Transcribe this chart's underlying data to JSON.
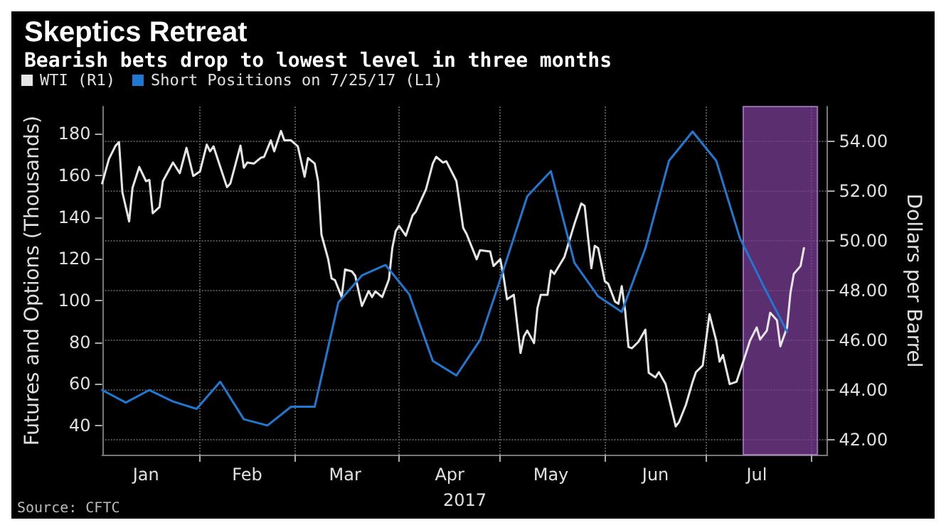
{
  "chart_data": {
    "type": "line",
    "title": "Skeptics Retreat",
    "subtitle": "Bearish bets drop to lowest level in three months",
    "xlabel": "2017",
    "ylabel": "Futures and Options (Thousands)",
    "y2label": "Dollars per Barrel",
    "annotations": [
      "Source: CFTC"
    ],
    "legend": "top left",
    "grid": true,
    "marker": "none",
    "line_style": "solid",
    "xlim": [
      "2017-01-03",
      "2017-08-06"
    ],
    "xticks": [
      {
        "value": "2017-02-01",
        "label": null
      },
      {
        "value": "2017-03-01",
        "label": null
      },
      {
        "value": "2017-04-01",
        "label": null
      },
      {
        "value": "2017-05-01",
        "label": null
      },
      {
        "value": "2017-06-01",
        "label": null
      },
      {
        "value": "2017-07-01",
        "label": null
      },
      {
        "value": "2017-08-01",
        "label": null
      },
      {
        "value": "2017-01-16",
        "label": "Jan"
      },
      {
        "value": "2017-02-15",
        "label": "Feb"
      },
      {
        "value": "2017-03-16",
        "label": "Mar"
      },
      {
        "value": "2017-04-16",
        "label": "Apr"
      },
      {
        "value": "2017-05-16",
        "label": "May"
      },
      {
        "value": "2017-06-16",
        "label": "Jun"
      },
      {
        "value": "2017-07-16",
        "label": "Jul"
      }
    ],
    "ylim": [
      26,
      193
    ],
    "yticks": [
      40,
      60,
      80,
      100,
      120,
      140,
      160,
      180
    ],
    "y2lim": [
      41.4,
      55.4
    ],
    "y2ticks": [
      {
        "value": 42,
        "label": "42.00"
      },
      {
        "value": 44,
        "label": "44.00"
      },
      {
        "value": 46,
        "label": "46.00"
      },
      {
        "value": 48,
        "label": "48.00"
      },
      {
        "value": 50,
        "label": "50.00"
      },
      {
        "value": 52,
        "label": "52.00"
      },
      {
        "value": 54,
        "label": "54.00"
      }
    ],
    "bands": [
      {
        "axis": "x",
        "from": "2017-07-12",
        "to": "2017-08-03",
        "color": "#7a3e96"
      }
    ],
    "series": [
      {
        "name": "WTI (R1)",
        "color": "#e6e6e6",
        "axis": "y2",
        "x": [
          "2017-01-03",
          "2017-01-05",
          "2017-01-07",
          "2017-01-08",
          "2017-01-09",
          "2017-01-11",
          "2017-01-12",
          "2017-01-14",
          "2017-01-16",
          "2017-01-17",
          "2017-01-18",
          "2017-01-20",
          "2017-01-21",
          "2017-01-24",
          "2017-01-26",
          "2017-01-28",
          "2017-01-30",
          "2017-02-01",
          "2017-02-03",
          "2017-02-04",
          "2017-02-05",
          "2017-02-09",
          "2017-02-10",
          "2017-02-13",
          "2017-02-14",
          "2017-02-15",
          "2017-02-17",
          "2017-02-19",
          "2017-02-20",
          "2017-02-22",
          "2017-02-23",
          "2017-02-25",
          "2017-02-26",
          "2017-02-28",
          "2017-03-01",
          "2017-03-02",
          "2017-03-04",
          "2017-03-05",
          "2017-03-07",
          "2017-03-08",
          "2017-03-09",
          "2017-03-11",
          "2017-03-12",
          "2017-03-13",
          "2017-03-15",
          "2017-03-16",
          "2017-03-18",
          "2017-03-19",
          "2017-03-21",
          "2017-03-23",
          "2017-03-24",
          "2017-03-25",
          "2017-03-27",
          "2017-03-29",
          "2017-03-30",
          "2017-03-31",
          "2017-04-01",
          "2017-04-03",
          "2017-04-05",
          "2017-04-06",
          "2017-04-09",
          "2017-04-11",
          "2017-04-12",
          "2017-04-14",
          "2017-04-15",
          "2017-04-17",
          "2017-04-18",
          "2017-04-20",
          "2017-04-21",
          "2017-04-24",
          "2017-04-25",
          "2017-04-28",
          "2017-04-29",
          "2017-05-01",
          "2017-05-02",
          "2017-05-03",
          "2017-05-05",
          "2017-05-07",
          "2017-05-08",
          "2017-05-09",
          "2017-05-11",
          "2017-05-12",
          "2017-05-13",
          "2017-05-15",
          "2017-05-16",
          "2017-05-17",
          "2017-05-20",
          "2017-05-23",
          "2017-05-25",
          "2017-05-26",
          "2017-05-28",
          "2017-05-29",
          "2017-05-30",
          "2017-06-01",
          "2017-06-02",
          "2017-06-04",
          "2017-06-05",
          "2017-06-06",
          "2017-06-07",
          "2017-06-08",
          "2017-06-09",
          "2017-06-11",
          "2017-06-13",
          "2017-06-14",
          "2017-06-16",
          "2017-06-17",
          "2017-06-19",
          "2017-06-22",
          "2017-06-23",
          "2017-06-25",
          "2017-06-27",
          "2017-06-28",
          "2017-06-30",
          "2017-07-02",
          "2017-07-04",
          "2017-07-05",
          "2017-07-06",
          "2017-07-08",
          "2017-07-10",
          "2017-07-12",
          "2017-07-14",
          "2017-07-16",
          "2017-07-17",
          "2017-07-19",
          "2017-07-20",
          "2017-07-22",
          "2017-07-23",
          "2017-07-25",
          "2017-07-26",
          "2017-07-27",
          "2017-07-29",
          "2017-07-30"
        ],
        "values": [
          52.31,
          53.29,
          53.83,
          53.97,
          51.95,
          50.78,
          52.13,
          52.97,
          52.4,
          52.45,
          51.11,
          51.36,
          52.4,
          53.15,
          52.72,
          53.74,
          52.61,
          52.79,
          53.87,
          53.6,
          53.8,
          52.16,
          52.31,
          53.83,
          52.94,
          53.15,
          53.11,
          53.34,
          53.38,
          54.04,
          53.6,
          54.42,
          54.04,
          54.04,
          53.92,
          53.8,
          52.58,
          53.33,
          53.11,
          52.4,
          50.25,
          49.26,
          48.49,
          48.42,
          47.74,
          48.85,
          48.77,
          48.6,
          47.38,
          47.98,
          47.74,
          47.97,
          47.74,
          48.45,
          49.71,
          50.39,
          50.6,
          50.21,
          51.02,
          51.18,
          52.08,
          53.11,
          53.38,
          53.15,
          53.2,
          52.67,
          52.4,
          50.52,
          50.28,
          49.26,
          49.62,
          49.57,
          48.99,
          49.26,
          48.54,
          47.65,
          47.83,
          45.49,
          46.16,
          46.39,
          45.89,
          47.29,
          47.83,
          47.83,
          48.81,
          48.67,
          49.35,
          50.69,
          51.5,
          51.41,
          48.9,
          49.8,
          49.71,
          48.37,
          48.27,
          47.56,
          47.47,
          48.18,
          47.2,
          45.73,
          45.68,
          45.95,
          46.43,
          44.69,
          44.51,
          44.72,
          44.24,
          42.54,
          42.72,
          43.4,
          44.33,
          44.72,
          44.99,
          47.05,
          45.98,
          45.14,
          45.41,
          44.24,
          44.33,
          45.14,
          45.98,
          46.52,
          46.03,
          46.39,
          47.11,
          46.81,
          45.76,
          46.52,
          47.91,
          48.67,
          48.99,
          49.71
        ]
      },
      {
        "name": "Short Positions on 7/25/17 (L1)",
        "color": "#1f78d1",
        "x": [
          "2017-01-03",
          "2017-01-10",
          "2017-01-17",
          "2017-01-24",
          "2017-01-31",
          "2017-02-07",
          "2017-02-14",
          "2017-02-21",
          "2017-02-28",
          "2017-03-07",
          "2017-03-14",
          "2017-03-21",
          "2017-03-28",
          "2017-04-04",
          "2017-04-11",
          "2017-04-18",
          "2017-04-25",
          "2017-05-02",
          "2017-05-09",
          "2017-05-16",
          "2017-05-23",
          "2017-05-30",
          "2017-06-06",
          "2017-06-13",
          "2017-06-20",
          "2017-06-27",
          "2017-07-04",
          "2017-07-11",
          "2017-07-18",
          "2017-07-25"
        ],
        "values": [
          57,
          51,
          57,
          51.5,
          48,
          61,
          43,
          40,
          49,
          49,
          99,
          112,
          117,
          103,
          71,
          64,
          81,
          115,
          150,
          162,
          118,
          102,
          94.5,
          125,
          167,
          181,
          167,
          130,
          107,
          85
        ]
      }
    ]
  }
}
